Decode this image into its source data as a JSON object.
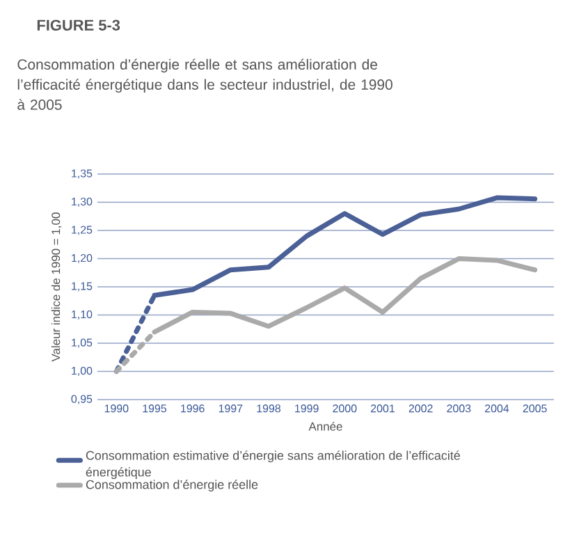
{
  "chart_data": {
    "type": "line",
    "title": "FIGURE 5-3",
    "subtitle": "Consommation d’énergie réelle et sans amélioration de l’efficacité énergétique dans le secteur industriel, de 1990 à 2005",
    "xlabel": "Année",
    "ylabel": "Valeur indice de 1990 = 1,00",
    "categories": [
      "1990",
      "1995",
      "1996",
      "1997",
      "1998",
      "1999",
      "2000",
      "2001",
      "2002",
      "2003",
      "2004",
      "2005"
    ],
    "series": [
      {
        "color": "#4a6096",
        "line_style": "dotted",
        "values": [
          1.0,
          1.135,
          null,
          null,
          null,
          null,
          null,
          null,
          null,
          null,
          null,
          null
        ]
      },
      {
        "color": "#aaaaaa",
        "line_style": "dotted",
        "values": [
          1.0,
          1.07,
          null,
          null,
          null,
          null,
          null,
          null,
          null,
          null,
          null,
          null
        ]
      },
      {
        "name": "Consommation estimative d’énergie sans amélioration de l’efficacité énergétique",
        "color": "#4a6096",
        "line_style": "solid",
        "values": [
          null,
          1.135,
          1.145,
          1.18,
          1.185,
          1.24,
          1.28,
          1.243,
          1.278,
          1.288,
          1.308,
          1.306
        ]
      },
      {
        "name": "Consommation d’énergie réelle",
        "color": "#aaaaaa",
        "line_style": "solid",
        "values": [
          null,
          1.07,
          1.105,
          1.103,
          1.08,
          1.113,
          1.148,
          1.105,
          1.165,
          1.2,
          1.197,
          1.18
        ]
      }
    ],
    "ylim": [
      0.95,
      1.35
    ],
    "yticks": [
      {
        "value": 0.95,
        "label": "0,95"
      },
      {
        "value": 1.0,
        "label": "1,00"
      },
      {
        "value": 1.05,
        "label": "1,05"
      },
      {
        "value": 1.1,
        "label": "1,10"
      },
      {
        "value": 1.15,
        "label": "1,15"
      },
      {
        "value": 1.2,
        "label": "1,20"
      },
      {
        "value": 1.25,
        "label": "1,25"
      },
      {
        "value": 1.3,
        "label": "1,30"
      },
      {
        "value": 1.35,
        "label": "1,35"
      }
    ],
    "grid": "y",
    "legend": "bottom",
    "marker": "none"
  }
}
